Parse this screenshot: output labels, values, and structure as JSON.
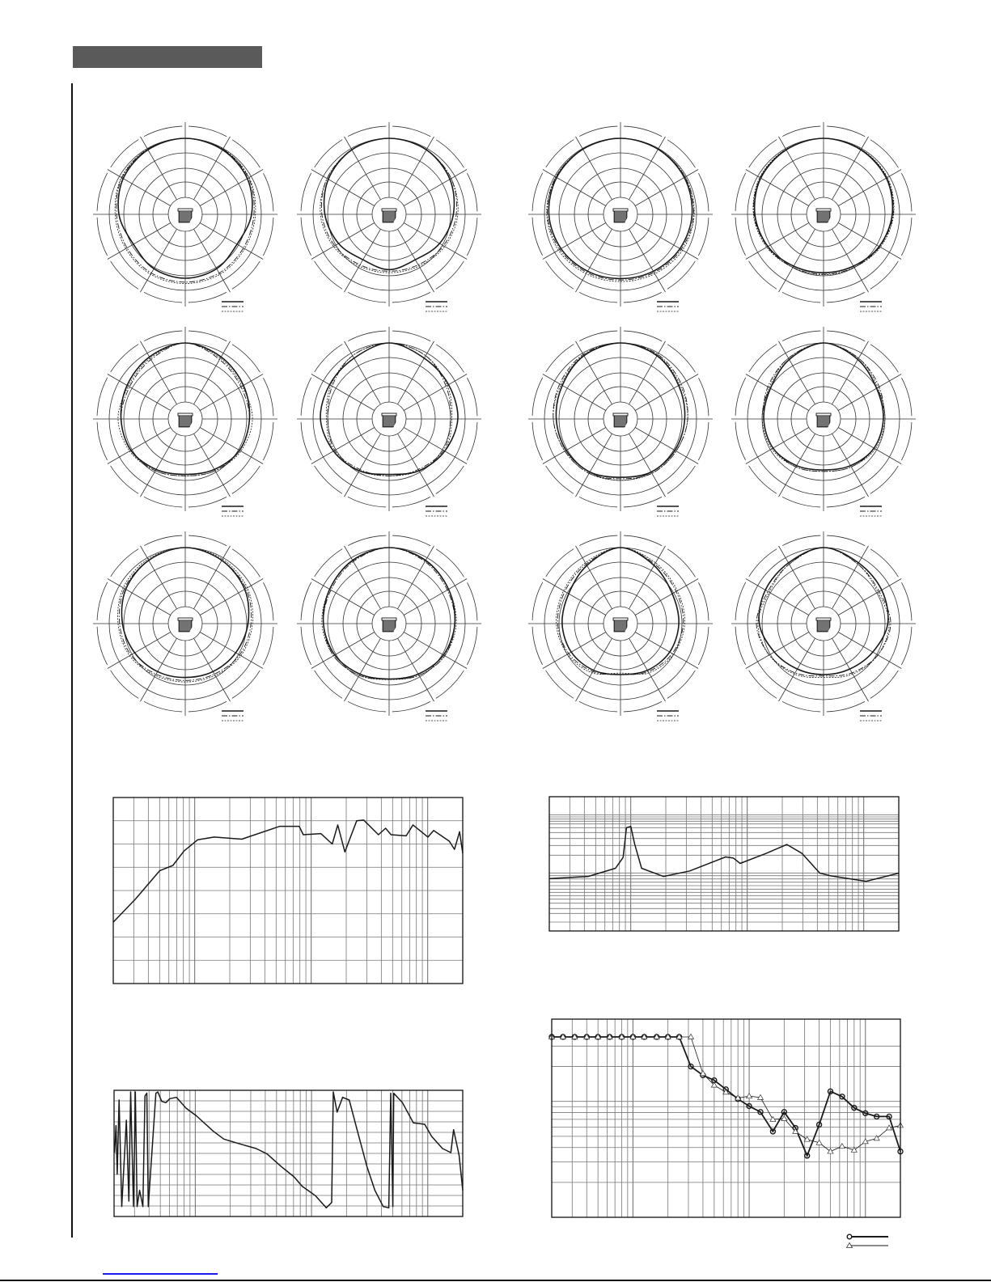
{
  "colors": {
    "header_bar": "#5a5a5a",
    "grid": "#777777",
    "trace": "#1a1a1a",
    "link": "#1a1aee"
  },
  "chart_data": [
    {
      "type": "polar",
      "angles_deg": [
        0,
        30,
        60,
        90,
        120,
        150,
        180
      ],
      "symmetric": true,
      "unit": "dB",
      "series": [
        {
          "style": "solid",
          "values": [
            0,
            -0.5,
            -1.5,
            -3.3,
            -5.5,
            -4.5,
            -4.1
          ]
        },
        {
          "style": "dash-dot",
          "values": [
            0,
            -0.3,
            -1,
            -2.5,
            -3,
            -2.8,
            -2.8
          ]
        },
        {
          "style": "dotted",
          "values": [
            0,
            -0.2,
            -0.8,
            -2,
            -2.5,
            -2.3,
            -2.3
          ]
        }
      ]
    },
    {
      "type": "polar",
      "angles_deg": [
        0,
        30,
        60,
        90,
        120,
        150,
        180
      ],
      "symmetric": true,
      "unit": "dB",
      "series": [
        {
          "style": "solid",
          "values": [
            0,
            -0.5,
            -2,
            -4,
            -6,
            -8,
            -7
          ]
        },
        {
          "style": "dash-dot",
          "values": [
            0,
            -0.5,
            -1.5,
            -3,
            -4.5,
            -6,
            -6.5
          ]
        },
        {
          "style": "dotted",
          "values": [
            0,
            -0.5,
            -1.5,
            -2.5,
            -4,
            -5.5,
            -6
          ]
        }
      ]
    },
    {
      "type": "polar",
      "angles_deg": [
        0,
        30,
        60,
        90,
        120,
        150,
        180
      ],
      "symmetric": true,
      "unit": "dB",
      "series": [
        {
          "style": "solid",
          "values": [
            0,
            -0.3,
            -0.8,
            -1.5,
            -2.5,
            -3.5,
            -4
          ]
        },
        {
          "style": "dash-dot",
          "values": [
            0,
            -0.2,
            -0.5,
            -1,
            -2,
            -3,
            -3.5
          ]
        },
        {
          "style": "dotted",
          "values": [
            0,
            -0.2,
            -0.4,
            -0.8,
            -1.5,
            -2.5,
            -3
          ]
        }
      ]
    },
    {
      "type": "polar",
      "angles_deg": [
        0,
        30,
        60,
        90,
        120,
        150,
        180
      ],
      "symmetric": true,
      "unit": "dB",
      "series": [
        {
          "style": "solid",
          "values": [
            0,
            -0.5,
            -1.2,
            -2.5,
            -4,
            -5.5,
            -6
          ]
        },
        {
          "style": "dash-dot",
          "values": [
            0,
            -0.4,
            -1,
            -2.2,
            -3.8,
            -5,
            -5.5
          ]
        },
        {
          "style": "dotted",
          "values": [
            0,
            -0.3,
            -0.8,
            -2,
            -3.5,
            -5,
            -5.3
          ]
        }
      ]
    },
    {
      "type": "polar",
      "angles_deg": [
        0,
        30,
        60,
        90,
        120,
        150,
        180
      ],
      "symmetric": true,
      "unit": "dB",
      "series": [
        {
          "style": "solid",
          "values": [
            0,
            -1.5,
            -3,
            -4,
            -4.5,
            -6,
            -7
          ]
        },
        {
          "style": "dash-dot",
          "values": [
            0,
            -2.5,
            -4,
            -4,
            -4.5,
            -5.5,
            -6.5
          ]
        },
        {
          "style": "dotted",
          "values": [
            0,
            -2,
            -3.5,
            -3,
            -4,
            -5.5,
            -6.5
          ]
        }
      ]
    },
    {
      "type": "polar",
      "angles_deg": [
        0,
        30,
        60,
        90,
        120,
        150,
        180
      ],
      "symmetric": true,
      "unit": "dB",
      "series": [
        {
          "style": "solid",
          "values": [
            0,
            -2,
            -2.5,
            -2.5,
            -4,
            -5.5,
            -7
          ]
        },
        {
          "style": "dash-dot",
          "values": [
            0,
            -1,
            -3.5,
            -5,
            -4.5,
            -6,
            -6.5
          ]
        },
        {
          "style": "dotted",
          "values": [
            0,
            -1,
            -3,
            -4.5,
            -4,
            -5.5,
            -6.5
          ]
        }
      ]
    },
    {
      "type": "polar",
      "angles_deg": [
        0,
        30,
        60,
        90,
        120,
        150,
        180
      ],
      "symmetric": true,
      "unit": "dB",
      "series": [
        {
          "style": "solid",
          "values": [
            0,
            -1,
            -3,
            -4,
            -4.5,
            -5,
            -6
          ]
        },
        {
          "style": "dash-dot",
          "values": [
            0,
            -0.5,
            -2,
            -3,
            -4,
            -4.5,
            -5.5
          ]
        },
        {
          "style": "dotted",
          "values": [
            0,
            -0.8,
            -2.5,
            -3,
            -4,
            -4.5,
            -5
          ]
        }
      ]
    },
    {
      "type": "polar",
      "angles_deg": [
        0,
        30,
        60,
        90,
        120,
        150,
        180
      ],
      "symmetric": true,
      "unit": "dB",
      "series": [
        {
          "style": "solid",
          "values": [
            0,
            -2.5,
            -5,
            -5.5,
            -6,
            -7.5,
            -8.5
          ]
        },
        {
          "style": "dash-dot",
          "values": [
            0,
            -2,
            -4,
            -5.5,
            -6,
            -7,
            -8
          ]
        },
        {
          "style": "dotted",
          "values": [
            0,
            -2,
            -4.5,
            -5,
            -5.5,
            -7,
            -8
          ]
        }
      ]
    },
    {
      "type": "polar",
      "angles_deg": [
        0,
        30,
        60,
        90,
        120,
        150,
        180
      ],
      "symmetric": true,
      "unit": "dB",
      "series": [
        {
          "style": "solid",
          "values": [
            0,
            -1,
            -2.5,
            -4.5,
            -6,
            -7,
            -7.5
          ]
        },
        {
          "style": "dash-dot",
          "values": [
            0,
            -1,
            -2,
            -3.5,
            -4.5,
            -6,
            -6.5
          ]
        },
        {
          "style": "dotted",
          "values": [
            0,
            -0.5,
            -1.5,
            -3,
            -4,
            -5.5,
            -6
          ]
        }
      ]
    },
    {
      "type": "polar",
      "angles_deg": [
        0,
        30,
        60,
        90,
        120,
        150,
        180
      ],
      "symmetric": true,
      "unit": "dB",
      "series": [
        {
          "style": "solid",
          "values": [
            0,
            -1,
            -2.5,
            -3.5,
            -4.5,
            -6,
            -7
          ]
        },
        {
          "style": "dash-dot",
          "values": [
            0,
            -1.5,
            -3,
            -3.5,
            -4,
            -5.5,
            -7
          ]
        },
        {
          "style": "dotted",
          "values": [
            0,
            -1.2,
            -2.5,
            -3,
            -4,
            -5.5,
            -6.8
          ]
        }
      ]
    },
    {
      "type": "polar",
      "angles_deg": [
        0,
        30,
        60,
        90,
        120,
        150,
        180
      ],
      "symmetric": true,
      "unit": "dB",
      "series": [
        {
          "style": "solid",
          "values": [
            0,
            -3,
            -5.5,
            -6,
            -6.5,
            -7.5,
            -8.5
          ]
        },
        {
          "style": "dash-dot",
          "values": [
            0,
            -2.5,
            -4,
            -4.5,
            -5.5,
            -7,
            -8.5
          ]
        },
        {
          "style": "dotted",
          "values": [
            0,
            -2,
            -3.5,
            -4,
            -5,
            -6.5,
            -9
          ]
        }
      ]
    },
    {
      "type": "polar",
      "angles_deg": [
        0,
        30,
        60,
        90,
        120,
        150,
        180
      ],
      "symmetric": true,
      "unit": "dB",
      "series": [
        {
          "style": "solid",
          "values": [
            0,
            -2,
            -3,
            -4,
            -6.5,
            -8,
            -8.5
          ]
        },
        {
          "style": "dash-dot",
          "values": [
            0,
            -2.5,
            -4,
            -3,
            -4.5,
            -6.5,
            -8
          ]
        },
        {
          "style": "dotted",
          "values": [
            0,
            -2.5,
            -4.5,
            -3.5,
            -4.5,
            -6,
            -7.5
          ]
        }
      ]
    },
    {
      "type": "line",
      "xscale": "log",
      "xlim": [
        20,
        20000
      ],
      "ylim": [
        0,
        80
      ],
      "grid": true,
      "x": [
        20,
        31,
        50,
        65,
        81,
        106,
        147,
        254,
        538,
        788,
        856,
        1210,
        1517,
        1690,
        1946,
        2460,
        2823,
        3780,
        4350,
        4850,
        6540,
        7480,
        10050,
        11240,
        15330,
        17000,
        18800,
        20000
      ],
      "y": [
        26.4,
        36.3,
        48.5,
        50.8,
        57,
        61.8,
        63,
        62.1,
        67.6,
        67.6,
        64,
        64.5,
        60,
        68.2,
        56.6,
        70,
        70.3,
        64,
        66.8,
        64,
        63.5,
        68.2,
        63,
        65.8,
        61.2,
        57.7,
        65.3,
        56
      ]
    },
    {
      "type": "line",
      "xscale": "log",
      "xlim": [
        20,
        20000
      ],
      "ylim": [
        0,
        100
      ],
      "grid": true,
      "x": [
        20,
        43,
        74,
        86,
        92,
        100,
        108,
        124,
        191,
        321,
        652,
        763,
        870,
        1448,
        2190,
        2960,
        4200,
        5230,
        10500,
        20000
      ],
      "y": [
        39,
        40.6,
        46.7,
        54.7,
        76.9,
        77.9,
        64.8,
        46.7,
        40.6,
        44.7,
        55.1,
        54.3,
        50.3,
        57.7,
        64.4,
        57.7,
        43.1,
        41,
        37,
        43.1
      ]
    },
    {
      "type": "line",
      "xscale": "log",
      "xlim": [
        20,
        20000
      ],
      "ylim": [
        -180,
        180
      ],
      "grid": true,
      "x": [
        20.2,
        20.8,
        21.3,
        22.1,
        23.3,
        25.5,
        26.8,
        27.8,
        29.4,
        30.5,
        31.6,
        33.2,
        35.4,
        36.9,
        38.3,
        39.4,
        45.8,
        47.6,
        51.4,
        55.8,
        60.3,
        68.9,
        83.1,
        103,
        142,
        176,
        242,
        334,
        415,
        541,
        707,
        831,
        1081,
        1340,
        1490,
        1540,
        1660,
        1850,
        2110,
        2480,
        2990,
        3510,
        4140,
        4620,
        4800,
        5010,
        5100,
        6060,
        7520,
        9410,
        10800,
        13400,
        15800,
        16700,
        18600,
        20000
      ],
      "y": [
        2.3,
        79.3,
        -59.2,
        152.3,
        -151.5,
        94.6,
        -136.1,
        175.4,
        -151.5,
        175.4,
        -151.5,
        -105.3,
        -151.5,
        163.9,
        171.6,
        -151.5,
        171.6,
        175.4,
        148.5,
        144.6,
        156.2,
        160,
        129.3,
        106.2,
        63.9,
        40.8,
        27,
        13.9,
        -1.5,
        -36.1,
        -66.9,
        -93.8,
        -120.7,
        -155.3,
        -140,
        175.4,
        117.7,
        160,
        152.3,
        63.9,
        -36.1,
        -105.3,
        -151.5,
        -155.3,
        171.6,
        -151.5,
        171.6,
        144.6,
        87,
        83.1,
        48.5,
        13.9,
        2.3,
        67.7,
        -5.3,
        -105.3
      ]
    },
    {
      "type": "line",
      "xscale": "log",
      "yscale": "log",
      "xlim": [
        20,
        20000
      ],
      "ylim": [
        10,
        500
      ],
      "grid": true,
      "unit": "deg",
      "legend": "bottom-right",
      "x": [
        20,
        25,
        31.5,
        40,
        50,
        63,
        80,
        100,
        125,
        160,
        200,
        250,
        315,
        400,
        500,
        630,
        800,
        1000,
        1250,
        1600,
        2000,
        2500,
        3150,
        4000,
        5000,
        6300,
        8000,
        10000,
        12500,
        16000,
        20000
      ],
      "series": [
        {
          "marker": "circle",
          "style": "thick",
          "values": [
            360,
            360,
            360,
            360,
            360,
            360,
            360,
            360,
            360,
            360,
            360,
            360,
            200,
            168,
            152,
            127,
            105,
            91,
            81,
            55,
            81,
            59,
            34,
            63,
            122,
            110,
            88,
            79,
            74,
            74,
            37
          ]
        },
        {
          "marker": "triangle",
          "style": "thin",
          "values": [
            360,
            360,
            360,
            360,
            360,
            360,
            360,
            360,
            360,
            360,
            360,
            360,
            360,
            174,
            138,
            120,
            107,
            111,
            108,
            70,
            71,
            55,
            47,
            44,
            37,
            41,
            38,
            45,
            48,
            59,
            62
          ]
        }
      ]
    }
  ]
}
